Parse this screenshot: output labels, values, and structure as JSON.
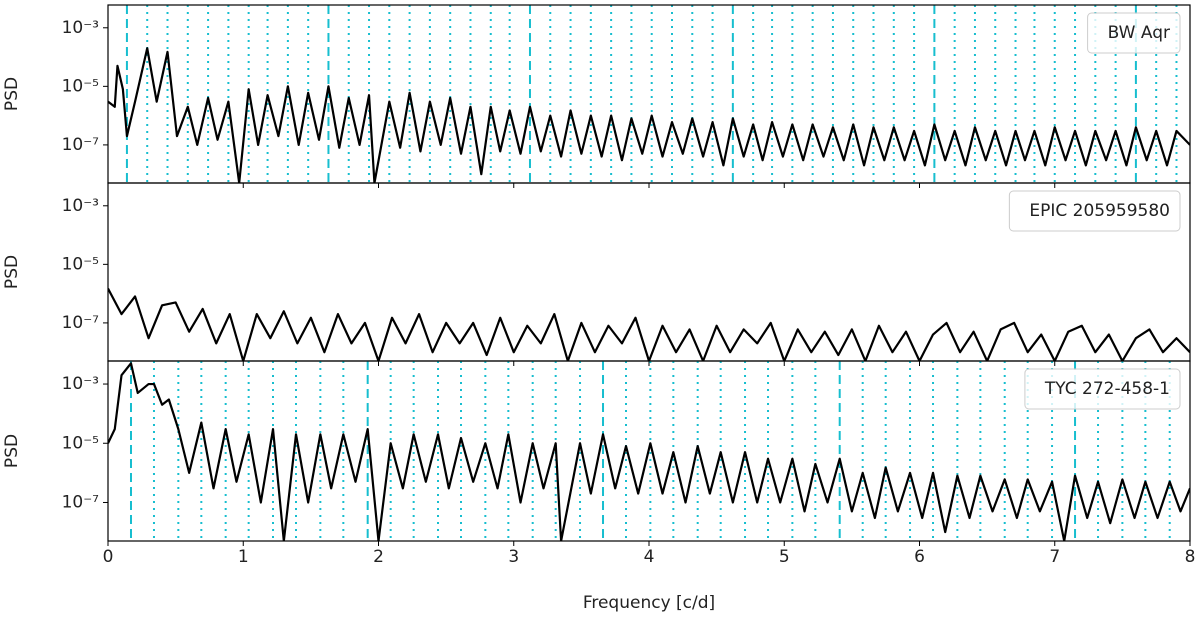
{
  "chart_data": [
    {
      "type": "line",
      "log_y": true,
      "ylabel": "PSD",
      "xlim": [
        0,
        8
      ],
      "xticks": [
        0,
        1,
        2,
        3,
        4,
        5,
        6,
        7,
        8
      ],
      "ylim": [
        5e-09,
        0.006
      ],
      "yticks": [
        {
          "value": 1e-07,
          "label": "10⁻⁷"
        },
        {
          "value": 1e-05,
          "label": "10⁻⁵"
        },
        {
          "value": 0.001,
          "label": "10⁻³"
        }
      ],
      "marker_color": "#17becf",
      "dashed_lines": [
        0.14,
        1.63,
        3.12,
        4.62,
        6.11,
        7.6
      ],
      "dotted_lines": [
        0.29,
        0.44,
        0.59,
        0.74,
        0.89,
        1.04,
        1.18,
        1.33,
        1.48,
        1.78,
        1.93,
        2.08,
        2.23,
        2.38,
        2.53,
        2.68,
        2.83,
        2.97,
        3.27,
        3.42,
        3.57,
        3.72,
        3.87,
        4.02,
        4.17,
        4.32,
        4.47,
        4.77,
        4.91,
        5.06,
        5.21,
        5.36,
        5.51,
        5.66,
        5.81,
        5.96,
        6.26,
        6.41,
        6.56,
        6.71,
        6.85,
        7.0,
        7.15,
        7.3,
        7.45,
        7.75,
        7.9
      ],
      "series": [
        {
          "name": "BW Aqr",
          "color": "#000000",
          "x": [
            0,
            0.05,
            0.07,
            0.11,
            0.14,
            0.2,
            0.29,
            0.36,
            0.44,
            0.51,
            0.59,
            0.66,
            0.74,
            0.81,
            0.89,
            0.97,
            1.04,
            1.11,
            1.18,
            1.26,
            1.33,
            1.41,
            1.48,
            1.56,
            1.63,
            1.71,
            1.78,
            1.86,
            1.93,
            1.97,
            2.08,
            2.16,
            2.23,
            2.31,
            2.38,
            2.46,
            2.53,
            2.61,
            2.68,
            2.76,
            2.83,
            2.9,
            2.97,
            3.05,
            3.12,
            3.2,
            3.27,
            3.35,
            3.42,
            3.5,
            3.57,
            3.65,
            3.72,
            3.8,
            3.87,
            3.95,
            4.02,
            4.1,
            4.17,
            4.25,
            4.32,
            4.4,
            4.47,
            4.55,
            4.62,
            4.7,
            4.77,
            4.84,
            4.91,
            4.99,
            5.06,
            5.14,
            5.21,
            5.29,
            5.36,
            5.44,
            5.51,
            5.59,
            5.66,
            5.74,
            5.81,
            5.89,
            5.96,
            6.04,
            6.11,
            6.19,
            6.26,
            6.34,
            6.41,
            6.49,
            6.56,
            6.64,
            6.71,
            6.78,
            6.85,
            6.93,
            7.0,
            7.08,
            7.15,
            7.23,
            7.3,
            7.38,
            7.45,
            7.53,
            7.6,
            7.68,
            7.75,
            7.83,
            7.9,
            8.0
          ],
          "values": [
            3e-06,
            2e-06,
            5e-05,
            8e-06,
            2e-07,
            3e-06,
            0.0002,
            3e-06,
            0.00015,
            2e-07,
            2e-06,
            1e-07,
            4e-06,
            1.5e-07,
            3e-06,
            5e-09,
            8e-06,
            1e-07,
            5e-06,
            2e-07,
            1e-05,
            1e-07,
            6e-06,
            1.5e-07,
            1e-05,
            8e-08,
            4e-06,
            1e-07,
            5e-06,
            5e-09,
            3e-06,
            8e-08,
            6e-06,
            6e-08,
            3e-06,
            1e-07,
            4e-06,
            5e-08,
            2e-06,
            1e-08,
            2e-06,
            6e-08,
            1.5e-06,
            5e-08,
            2e-06,
            6e-08,
            1e-06,
            4e-08,
            1.5e-06,
            5e-08,
            1e-06,
            4e-08,
            1e-06,
            3e-08,
            8e-07,
            5e-08,
            1e-06,
            4e-08,
            6e-07,
            5e-08,
            8e-07,
            4e-08,
            6e-07,
            2e-08,
            8e-07,
            4e-08,
            5e-07,
            3e-08,
            6e-07,
            4e-08,
            5e-07,
            3e-08,
            5e-07,
            4e-08,
            4e-07,
            3e-08,
            5e-07,
            2e-08,
            4e-07,
            3e-08,
            4e-07,
            3e-08,
            3e-07,
            2e-08,
            5e-07,
            3e-08,
            3e-07,
            2e-08,
            4e-07,
            3e-08,
            3e-07,
            2e-08,
            3e-07,
            3e-08,
            3e-07,
            2e-08,
            4e-07,
            3e-08,
            3e-07,
            2e-08,
            3e-07,
            3e-08,
            3e-07,
            2e-08,
            4e-07,
            3e-08,
            3e-07,
            2e-08,
            3e-07,
            1e-07
          ]
        }
      ]
    },
    {
      "type": "line",
      "log_y": true,
      "ylabel": "PSD",
      "xlim": [
        0,
        8
      ],
      "xticks": [
        0,
        1,
        2,
        3,
        4,
        5,
        6,
        7,
        8
      ],
      "ylim": [
        5e-09,
        0.006
      ],
      "yticks": [
        {
          "value": 1e-07,
          "label": "10⁻⁷"
        },
        {
          "value": 1e-05,
          "label": "10⁻⁵"
        },
        {
          "value": 0.001,
          "label": "10⁻³"
        }
      ],
      "series": [
        {
          "name": "EPIC 205959580",
          "color": "#000000",
          "x": [
            0,
            0.1,
            0.2,
            0.3,
            0.4,
            0.5,
            0.6,
            0.7,
            0.8,
            0.9,
            1.0,
            1.1,
            1.2,
            1.3,
            1.4,
            1.5,
            1.6,
            1.7,
            1.8,
            1.9,
            2.0,
            2.1,
            2.2,
            2.3,
            2.4,
            2.5,
            2.6,
            2.7,
            2.8,
            2.9,
            3.0,
            3.1,
            3.2,
            3.3,
            3.4,
            3.5,
            3.6,
            3.7,
            3.8,
            3.9,
            4.0,
            4.1,
            4.2,
            4.3,
            4.4,
            4.5,
            4.6,
            4.7,
            4.8,
            4.9,
            5.0,
            5.1,
            5.2,
            5.3,
            5.4,
            5.5,
            5.6,
            5.7,
            5.8,
            5.9,
            6.0,
            6.1,
            6.2,
            6.3,
            6.4,
            6.5,
            6.6,
            6.7,
            6.8,
            6.9,
            7.0,
            7.1,
            7.2,
            7.3,
            7.4,
            7.5,
            7.6,
            7.7,
            7.8,
            7.9,
            8.0
          ],
          "values": [
            1.5e-06,
            2e-07,
            8e-07,
            3e-08,
            4e-07,
            5e-07,
            5e-08,
            3e-07,
            2e-08,
            2e-07,
            5e-09,
            2e-07,
            3e-08,
            2.5e-07,
            2e-08,
            1.5e-07,
            1e-08,
            2e-07,
            2e-08,
            1e-07,
            5e-09,
            1.5e-07,
            2e-08,
            2e-07,
            1e-08,
            1e-07,
            2e-08,
            1e-07,
            8e-09,
            1.5e-07,
            1e-08,
            8e-08,
            2e-08,
            2e-07,
            5e-09,
            1e-07,
            1e-08,
            8e-08,
            2e-08,
            1.5e-07,
            5e-09,
            8e-08,
            1e-08,
            6e-08,
            5e-09,
            8e-08,
            1e-08,
            6e-08,
            2e-08,
            1e-07,
            5e-09,
            6e-08,
            1e-08,
            5e-08,
            8e-09,
            6e-08,
            5e-09,
            8e-08,
            1e-08,
            5e-08,
            5e-09,
            4e-08,
            1e-07,
            1e-08,
            5e-08,
            5e-09,
            6e-08,
            1e-07,
            1e-08,
            4e-08,
            5e-09,
            5e-08,
            8e-08,
            1e-08,
            4e-08,
            5e-09,
            3e-08,
            6e-08,
            1e-08,
            3e-08,
            1e-08
          ]
        }
      ]
    },
    {
      "type": "line",
      "log_y": true,
      "ylabel": "PSD",
      "xlabel": "Frequency [c/d]",
      "xlim": [
        0,
        8
      ],
      "xticks": [
        0,
        1,
        2,
        3,
        4,
        5,
        6,
        7,
        8
      ],
      "ylim": [
        5e-09,
        0.006
      ],
      "yticks": [
        {
          "value": 1e-07,
          "label": "10⁻⁷"
        },
        {
          "value": 1e-05,
          "label": "10⁻⁵"
        },
        {
          "value": 0.001,
          "label": "10⁻³"
        }
      ],
      "marker_color": "#17becf",
      "dashed_lines": [
        0.17,
        1.92,
        3.66,
        5.41,
        7.15
      ],
      "dotted_lines": [
        0.34,
        0.52,
        0.69,
        0.87,
        1.04,
        1.22,
        1.39,
        1.57,
        1.74,
        2.09,
        2.26,
        2.44,
        2.61,
        2.79,
        2.96,
        3.14,
        3.31,
        3.49,
        3.83,
        4.01,
        4.18,
        4.36,
        4.53,
        4.71,
        4.88,
        5.06,
        5.23,
        5.58,
        5.75,
        5.93,
        6.1,
        6.28,
        6.45,
        6.63,
        6.8,
        6.98,
        7.32,
        7.5,
        7.67,
        7.85
      ],
      "series": [
        {
          "name": "TYC 272-458-1",
          "color": "#000000",
          "x": [
            0,
            0.05,
            0.1,
            0.17,
            0.22,
            0.3,
            0.34,
            0.4,
            0.45,
            0.52,
            0.6,
            0.69,
            0.78,
            0.87,
            0.95,
            1.04,
            1.13,
            1.22,
            1.3,
            1.39,
            1.48,
            1.57,
            1.65,
            1.74,
            1.83,
            1.92,
            2.0,
            2.09,
            2.18,
            2.26,
            2.35,
            2.44,
            2.52,
            2.61,
            2.7,
            2.79,
            2.88,
            2.96,
            3.05,
            3.14,
            3.22,
            3.31,
            3.35,
            3.49,
            3.57,
            3.66,
            3.75,
            3.83,
            3.92,
            4.01,
            4.1,
            4.18,
            4.27,
            4.36,
            4.45,
            4.53,
            4.62,
            4.71,
            4.8,
            4.88,
            4.97,
            5.06,
            5.15,
            5.23,
            5.32,
            5.41,
            5.5,
            5.58,
            5.67,
            5.75,
            5.84,
            5.93,
            6.02,
            6.1,
            6.19,
            6.28,
            6.37,
            6.45,
            6.54,
            6.63,
            6.72,
            6.8,
            6.89,
            6.98,
            7.07,
            7.15,
            7.24,
            7.32,
            7.41,
            7.5,
            7.59,
            7.67,
            7.76,
            7.85,
            7.93,
            8.0
          ],
          "values": [
            1e-05,
            3e-05,
            0.002,
            0.005,
            0.0005,
            0.001,
            0.001,
            0.0002,
            0.0003,
            3e-05,
            1e-06,
            5e-05,
            3e-07,
            3e-05,
            5e-07,
            2e-05,
            1e-07,
            3e-05,
            5e-09,
            2e-05,
            1e-07,
            2e-05,
            3e-07,
            2e-05,
            5e-07,
            3e-05,
            5e-09,
            1e-05,
            3e-07,
            2e-05,
            5e-07,
            2e-05,
            3e-07,
            1.5e-05,
            5e-07,
            1e-05,
            3e-07,
            2e-05,
            1e-07,
            1e-05,
            3e-07,
            1e-05,
            5e-09,
            1e-05,
            2e-07,
            2e-05,
            3e-07,
            8e-06,
            2e-07,
            1e-05,
            2e-07,
            5e-06,
            1e-07,
            8e-06,
            2e-07,
            5e-06,
            1e-07,
            5e-06,
            1e-07,
            3e-06,
            1e-07,
            3e-06,
            5e-08,
            2e-06,
            1e-07,
            3e-06,
            5e-08,
            1e-06,
            3e-08,
            1.5e-06,
            5e-08,
            1e-06,
            3e-08,
            1e-06,
            1e-08,
            8e-07,
            3e-08,
            8e-07,
            5e-08,
            6e-07,
            3e-08,
            6e-07,
            5e-08,
            5e-07,
            5e-09,
            8e-07,
            3e-08,
            5e-07,
            2e-08,
            6e-07,
            3e-08,
            5e-07,
            3e-08,
            5e-07,
            5e-08,
            3e-07
          ]
        }
      ]
    }
  ]
}
